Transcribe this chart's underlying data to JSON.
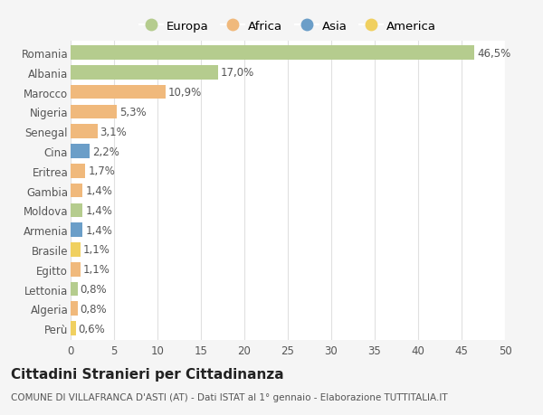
{
  "categories": [
    "Romania",
    "Albania",
    "Marocco",
    "Nigeria",
    "Senegal",
    "Cina",
    "Eritrea",
    "Gambia",
    "Moldova",
    "Armenia",
    "Brasile",
    "Egitto",
    "Lettonia",
    "Algeria",
    "Perù"
  ],
  "values": [
    46.5,
    17.0,
    10.9,
    5.3,
    3.1,
    2.2,
    1.7,
    1.4,
    1.4,
    1.4,
    1.1,
    1.1,
    0.8,
    0.8,
    0.6
  ],
  "labels": [
    "46,5%",
    "17,0%",
    "10,9%",
    "5,3%",
    "3,1%",
    "2,2%",
    "1,7%",
    "1,4%",
    "1,4%",
    "1,4%",
    "1,1%",
    "1,1%",
    "0,8%",
    "0,8%",
    "0,6%"
  ],
  "continent": [
    "Europa",
    "Europa",
    "Africa",
    "Africa",
    "Africa",
    "Asia",
    "Africa",
    "Africa",
    "Europa",
    "Asia",
    "America",
    "Africa",
    "Europa",
    "Africa",
    "America"
  ],
  "colors": {
    "Europa": "#b5cc8e",
    "Africa": "#f0b97c",
    "Asia": "#6b9ec8",
    "America": "#f0d060"
  },
  "legend_order": [
    "Europa",
    "Africa",
    "Asia",
    "America"
  ],
  "title": "Cittadini Stranieri per Cittadinanza",
  "subtitle": "COMUNE DI VILLAFRANCA D'ASTI (AT) - Dati ISTAT al 1° gennaio - Elaborazione TUTTITALIA.IT",
  "xlim": [
    0,
    50
  ],
  "xticks": [
    0,
    5,
    10,
    15,
    20,
    25,
    30,
    35,
    40,
    45,
    50
  ],
  "bg_color": "#f5f5f5",
  "plot_bg_color": "#ffffff",
  "grid_color": "#e0e0e0",
  "bar_height": 0.72,
  "label_fontsize": 8.5,
  "tick_fontsize": 8.5,
  "title_fontsize": 11,
  "subtitle_fontsize": 7.5
}
